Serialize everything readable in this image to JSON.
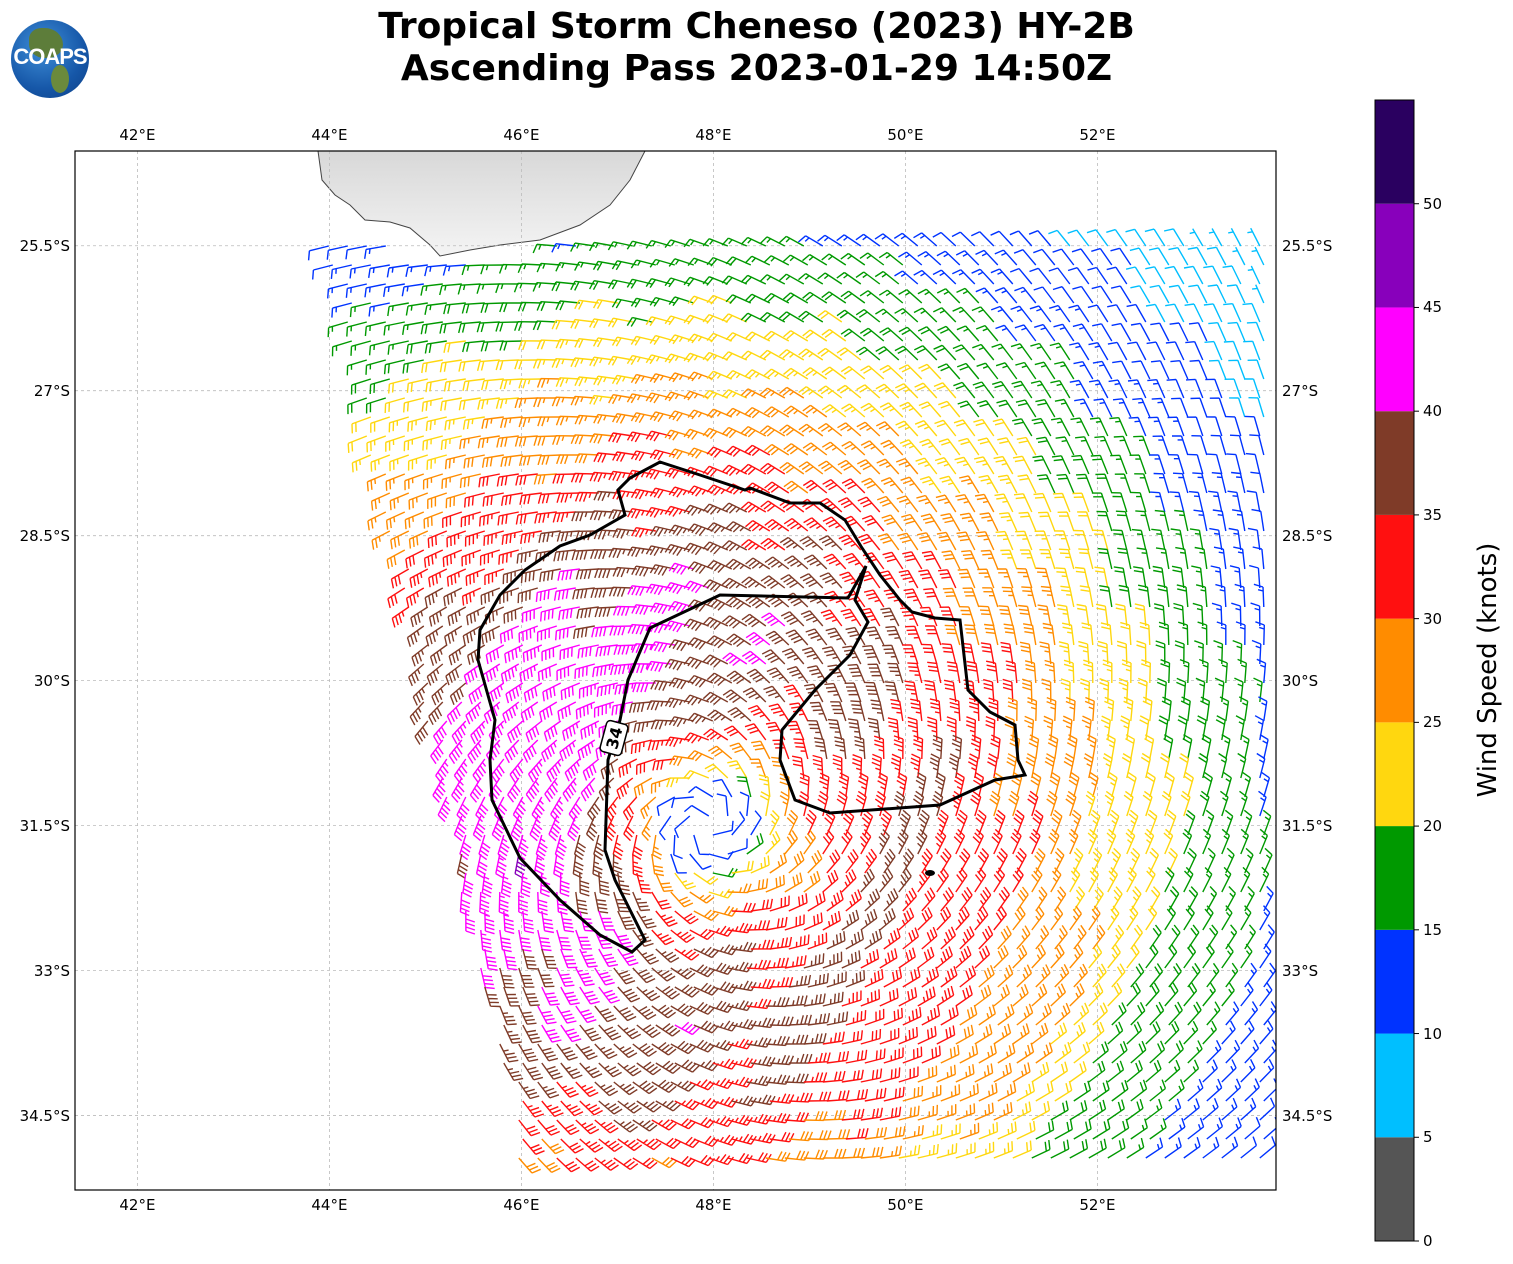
{
  "header": {
    "title_line1": "Tropical Storm Cheneso (2023) HY-2B",
    "title_line2": "Ascending Pass 2023-01-29 14:50Z",
    "logo_text": "COAPS"
  },
  "chart_data": {
    "type": "wind-barb-map",
    "lon_ticks": [
      "42°E",
      "44°E",
      "46°E",
      "48°E",
      "50°E",
      "52°E"
    ],
    "lon_values": [
      42,
      44,
      46,
      48,
      50,
      52
    ],
    "lat_ticks": [
      "25.5°S",
      "27°S",
      "28.5°S",
      "30°S",
      "31.5°S",
      "33°S",
      "34.5°S"
    ],
    "lat_values": [
      -25.5,
      -27,
      -28.5,
      -30,
      -31.5,
      -33,
      -34.5
    ],
    "lon_range": [
      41.35,
      53.86
    ],
    "lat_range": [
      -35.27,
      -24.52
    ],
    "storm_center": {
      "lon": 47.93,
      "lat": -31.5
    },
    "contour_label": "34",
    "colorbar": {
      "label": "Wind Speed (knots)",
      "levels": [
        0,
        5,
        10,
        15,
        20,
        25,
        30,
        35,
        40,
        45,
        50,
        55
      ],
      "tick_labels": [
        "0",
        "5",
        "10",
        "15",
        "20",
        "25",
        "30",
        "35",
        "40",
        "45",
        "50"
      ],
      "colors": [
        "#555555",
        "#00bfff",
        "#0033ff",
        "#009900",
        "#ffd70f",
        "#ff8c00",
        "#ff1010",
        "#7f3b28",
        "#ff00ff",
        "#8800bb",
        "#2a0060"
      ]
    }
  }
}
